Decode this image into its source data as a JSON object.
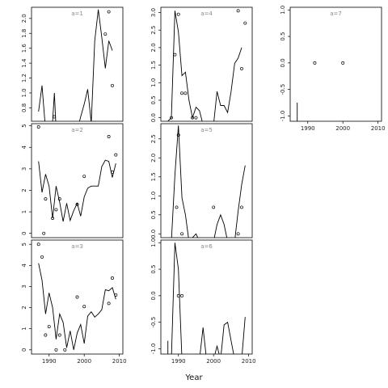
{
  "chart_data": {
    "type": "scatter",
    "xlabel": "Year",
    "x_ticks": [
      1990,
      2000,
      2010
    ],
    "xlim": [
      1985,
      2011
    ],
    "panels": [
      {
        "label": "a=1",
        "ylim": [
          0.62,
          2.15
        ],
        "y_ticks": [
          0.8,
          1.0,
          1.2,
          1.4,
          1.6,
          1.8,
          2.0
        ],
        "y_tick_labels": [
          "0.8",
          "1.0",
          "1.2",
          "1.4",
          "1.6",
          "1.8",
          "2.0"
        ],
        "line": [
          [
            1987,
            0.75
          ],
          [
            1988,
            1.1
          ],
          [
            1989,
            0.5
          ],
          [
            1990,
            0.5
          ],
          [
            1991,
            0.62
          ],
          [
            1991.5,
            1.0
          ],
          [
            1992,
            0.5
          ],
          [
            1998,
            0.5
          ],
          [
            1999,
            0.68
          ],
          [
            2000,
            0.85
          ],
          [
            2001,
            1.05
          ],
          [
            2002,
            0.6
          ],
          [
            2003,
            1.7
          ],
          [
            2004,
            2.12
          ],
          [
            2005,
            1.75
          ],
          [
            2006,
            1.33
          ],
          [
            2007,
            1.7
          ],
          [
            2008,
            1.57
          ]
        ],
        "points": [
          [
            1991.5,
            0.68
          ],
          [
            2006,
            1.79
          ],
          [
            2007,
            2.09
          ],
          [
            2008,
            1.1
          ]
        ]
      },
      {
        "label": "a=2",
        "ylim": [
          -0.2,
          5.1
        ],
        "y_ticks": [
          0,
          1,
          2,
          3,
          4,
          5
        ],
        "y_tick_labels": [
          "0",
          "1",
          "2",
          "3",
          "4",
          "5"
        ],
        "line": [
          [
            1987,
            3.35
          ],
          [
            1988,
            1.9
          ],
          [
            1989,
            2.75
          ],
          [
            1990,
            2.2
          ],
          [
            1991,
            0.7
          ],
          [
            1992,
            2.2
          ],
          [
            1993,
            1.45
          ],
          [
            1994,
            0.55
          ],
          [
            1995,
            1.4
          ],
          [
            1996,
            0.6
          ],
          [
            1997,
            1.05
          ],
          [
            1998,
            1.4
          ],
          [
            1999,
            0.8
          ],
          [
            2000,
            1.7
          ],
          [
            2001,
            2.1
          ],
          [
            2002,
            2.2
          ],
          [
            2003,
            2.2
          ],
          [
            2004,
            2.2
          ],
          [
            2005,
            3.1
          ],
          [
            2006,
            3.4
          ],
          [
            2007,
            3.35
          ],
          [
            2008,
            2.6
          ],
          [
            2009,
            3.25
          ]
        ],
        "points": [
          [
            1987,
            4.95
          ],
          [
            1988.5,
            0.0
          ],
          [
            1989,
            1.6
          ],
          [
            1991,
            0.7
          ],
          [
            1992,
            1.1
          ],
          [
            1993,
            1.6
          ],
          [
            1998,
            1.35
          ],
          [
            2000,
            2.65
          ],
          [
            2007,
            4.5
          ],
          [
            2008,
            2.85
          ],
          [
            2009,
            3.65
          ]
        ]
      },
      {
        "label": "a=3",
        "ylim": [
          -0.2,
          5.2
        ],
        "y_ticks": [
          0,
          1,
          2,
          3,
          4,
          5
        ],
        "y_tick_labels": [
          "0",
          "1",
          "2",
          "3",
          "4",
          "5"
        ],
        "line": [
          [
            1987,
            4.1
          ],
          [
            1988,
            3.3
          ],
          [
            1989,
            1.7
          ],
          [
            1990,
            2.7
          ],
          [
            1991,
            2.0
          ],
          [
            1992,
            0.5
          ],
          [
            1993,
            1.7
          ],
          [
            1994,
            1.3
          ],
          [
            1995,
            0.1
          ],
          [
            1996,
            0.9
          ],
          [
            1997,
            0.0
          ],
          [
            1998,
            0.8
          ],
          [
            1999,
            1.2
          ],
          [
            2000,
            0.3
          ],
          [
            2001,
            1.6
          ],
          [
            2002,
            1.8
          ],
          [
            2003,
            1.55
          ],
          [
            2004,
            1.7
          ],
          [
            2005,
            1.9
          ],
          [
            2006,
            2.85
          ],
          [
            2007,
            2.8
          ],
          [
            2008,
            2.95
          ],
          [
            2009,
            2.4
          ]
        ],
        "points": [
          [
            1987,
            5.0
          ],
          [
            1988,
            4.4
          ],
          [
            1989,
            0.7
          ],
          [
            1990,
            1.1
          ],
          [
            1992,
            0.0
          ],
          [
            1993,
            0.7
          ],
          [
            1994.5,
            0.0
          ],
          [
            1998,
            2.5
          ],
          [
            2000,
            2.05
          ],
          [
            2007,
            2.2
          ],
          [
            2008,
            3.4
          ],
          [
            2009,
            2.6
          ]
        ]
      },
      {
        "label": "a=4",
        "ylim": [
          -0.1,
          3.15
        ],
        "y_ticks": [
          0,
          0.5,
          1.0,
          1.5,
          2.0,
          2.5,
          3.0
        ],
        "y_tick_labels": [
          "0.0",
          "0.5",
          "1.0",
          "1.5",
          "2.0",
          "2.5",
          "3.0"
        ],
        "line": [
          [
            1987,
            -0.1
          ],
          [
            1988,
            0.0
          ],
          [
            1989,
            3.05
          ],
          [
            1990,
            2.45
          ],
          [
            1991,
            1.2
          ],
          [
            1992,
            1.3
          ],
          [
            1993,
            0.5
          ],
          [
            1994,
            0.0
          ],
          [
            1995,
            0.3
          ],
          [
            1996,
            0.2
          ],
          [
            1997,
            -0.2
          ],
          [
            2000,
            -0.2
          ],
          [
            2001,
            0.75
          ],
          [
            2002,
            0.35
          ],
          [
            2003,
            0.35
          ],
          [
            2004,
            0.15
          ],
          [
            2005,
            0.75
          ],
          [
            2006,
            1.55
          ],
          [
            2007,
            1.7
          ],
          [
            2008,
            2.0
          ]
        ],
        "points": [
          [
            1988,
            0.0
          ],
          [
            1989,
            1.8
          ],
          [
            1990,
            2.95
          ],
          [
            1991,
            0.7
          ],
          [
            1992,
            0.7
          ],
          [
            1994,
            0.0
          ],
          [
            1995,
            0.0
          ],
          [
            2007,
            3.05
          ],
          [
            2008,
            1.4
          ],
          [
            2009,
            2.7
          ]
        ]
      },
      {
        "label": "a=5",
        "ylim": [
          -0.1,
          2.9
        ],
        "y_ticks": [
          0,
          0.5,
          1.0,
          1.5,
          2.0,
          2.5
        ],
        "y_tick_labels": [
          "0.0",
          "0.5",
          "1.0",
          "1.5",
          "2.0",
          "2.5"
        ],
        "line": [
          [
            1988,
            -0.2
          ],
          [
            1989,
            1.55
          ],
          [
            1990,
            2.85
          ],
          [
            1991,
            0.95
          ],
          [
            1992,
            0.5
          ],
          [
            1993,
            -0.2
          ],
          [
            1995,
            0.0
          ],
          [
            1996,
            -0.2
          ],
          [
            2000,
            -0.2
          ],
          [
            2001,
            0.25
          ],
          [
            2002,
            0.5
          ],
          [
            2003,
            0.25
          ],
          [
            2004,
            -0.2
          ],
          [
            2006,
            -0.2
          ],
          [
            2007,
            0.6
          ],
          [
            2008,
            1.3
          ],
          [
            2009,
            1.8
          ]
        ],
        "points": [
          [
            1989.5,
            0.7
          ],
          [
            1990,
            2.6
          ],
          [
            1991,
            0.0
          ],
          [
            2000,
            0.7
          ],
          [
            2007,
            0.0
          ],
          [
            2008,
            0.7
          ]
        ]
      },
      {
        "label": "a=6",
        "ylim": [
          -1.1,
          1.05
        ],
        "y_ticks": [
          -1.0,
          -0.5,
          0.0,
          0.5,
          1.0
        ],
        "y_tick_labels": [
          "-1.0",
          "-0.5",
          "0.0",
          "0.5",
          "1.0"
        ],
        "line": [
          [
            1987,
            -0.85
          ],
          [
            1987,
            -1.2
          ],
          [
            1988,
            -1.2
          ],
          [
            1989,
            1.0
          ],
          [
            1990,
            0.5
          ],
          [
            1991,
            -1.2
          ],
          [
            1996,
            -1.2
          ],
          [
            1997,
            -0.6
          ],
          [
            1998,
            -1.2
          ],
          [
            2000,
            -1.2
          ],
          [
            2001,
            -0.95
          ],
          [
            2002,
            -1.2
          ],
          [
            2003,
            -0.55
          ],
          [
            2004,
            -0.5
          ],
          [
            2005,
            -0.85
          ],
          [
            2006,
            -1.2
          ],
          [
            2008,
            -1.2
          ],
          [
            2009,
            -0.4
          ]
        ],
        "points": [
          [
            1990,
            0.0
          ],
          [
            1991,
            0.0
          ]
        ]
      },
      {
        "label": "a=7",
        "ylim": [
          -1.1,
          1.05
        ],
        "y_ticks": [
          -1.0,
          -0.5,
          0.0,
          0.5,
          1.0
        ],
        "y_tick_labels": [
          "-1.0",
          "-0.5",
          "0.0",
          "0.5",
          "1.0"
        ],
        "line": [
          [
            1987,
            -1.2
          ],
          [
            1987,
            -0.75
          ]
        ],
        "points": [
          [
            1992,
            0.0
          ],
          [
            2000,
            0.0
          ]
        ]
      }
    ]
  }
}
